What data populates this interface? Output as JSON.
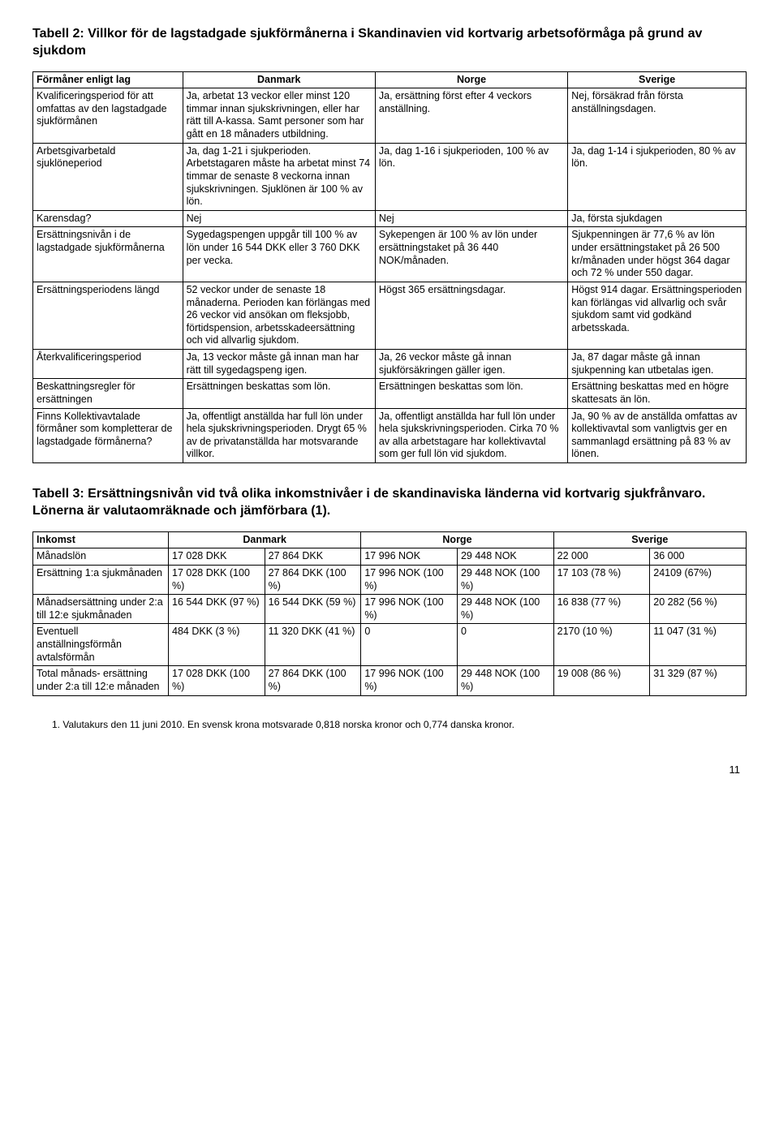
{
  "table2": {
    "title": "Tabell 2: Villkor för de lagstadgade sjukförmånerna i Skandinavien vid kortvarig arbetsoförmåga på grund av sjukdom",
    "headers": [
      "Förmåner enligt lag",
      "Danmark",
      "Norge",
      "Sverige"
    ],
    "rows": [
      {
        "label": "Kvalificeringsperiod för att omfattas av den lagstadgade sjukförmånen",
        "dk": "Ja, arbetat 13 veckor eller minst 120 timmar innan sjukskrivningen, eller har rätt till A-kassa. Samt personer som har gått en 18 månaders utbildning.",
        "no": "Ja, ersättning först efter 4 veckors anställning.",
        "se": "Nej, försäkrad från första anställningsdagen."
      },
      {
        "label": "Arbetsgivarbetald sjuklöneperiod",
        "dk": "Ja, dag 1-21 i sjukperioden. Arbetstagaren måste ha arbetat minst 74 timmar de senaste 8 veckorna innan sjukskrivningen. Sjuklönen är 100 % av lön.",
        "no": "Ja, dag 1-16 i sjukperioden, 100 % av lön.",
        "se": "Ja, dag 1-14 i sjukperioden, 80 % av lön."
      },
      {
        "label": "Karensdag?",
        "dk": "Nej",
        "no": "Nej",
        "se": "Ja, första sjukdagen"
      },
      {
        "label": "Ersättningsnivån i de lagstadgade sjukförmånerna",
        "dk": "Sygedagspengen uppgår till 100 % av lön under 16 544 DKK eller 3 760 DKK per vecka.",
        "no": "Sykepengen är 100 % av lön under ersättningstaket på 36 440 NOK/månaden.",
        "se": "Sjukpenningen är 77,6 % av lön under ersättningstaket på 26 500 kr/månaden under högst 364 dagar och 72 % under 550 dagar."
      },
      {
        "label": "Ersättningsperiodens längd",
        "dk": "52 veckor under de senaste 18 månaderna. Perioden kan förlängas med 26 veckor vid ansökan om fleksjobb, förtidspension, arbetsskadeersättning och vid allvarlig sjukdom.",
        "no": "Högst 365 ersättningsdagar.",
        "se": "Högst 914 dagar. Ersättningsperioden kan förlängas vid allvarlig och svår sjukdom samt vid godkänd arbetsskada."
      },
      {
        "label": "Återkvalificeringsperiod",
        "dk": "Ja, 13 veckor måste gå innan man har rätt till sygedagspeng igen.",
        "no": "Ja, 26 veckor måste gå innan sjukförsäkringen gäller igen.",
        "se": "Ja, 87 dagar måste gå innan sjukpenning kan utbetalas igen."
      },
      {
        "label": "Beskattningsregler för ersättningen",
        "dk": "Ersättningen beskattas som lön.",
        "no": "Ersättningen beskattas som lön.",
        "se": "Ersättning beskattas med en högre skattesats än lön."
      },
      {
        "label": "Finns Kollektivavtalade förmåner som kompletterar de lagstadgade förmånerna?",
        "dk": "Ja, offentligt anställda har full lön under hela sjukskrivningsperioden. Drygt 65 % av de privatanställda har motsvarande villkor.",
        "no": "Ja, offentligt anställda har full lön under hela sjukskrivningsperioden. Cirka 70 % av alla arbetstagare har kollektivavtal som ger full lön vid sjukdom.",
        "se": "Ja, 90 % av de anställda omfattas av kollektivavtal som vanligtvis ger en sammanlagd ersättning på 83 % av lönen."
      }
    ]
  },
  "table3": {
    "title": "Tabell 3: Ersättningsnivån vid två olika inkomstnivåer i de skandinaviska länderna vid kortvarig sjukfrånvaro. Lönerna är valutaomräknade och jämförbara (1).",
    "headers": [
      "Inkomst",
      "Danmark",
      "Norge",
      "Sverige"
    ],
    "rows": [
      {
        "label": "Månadslön",
        "c": [
          "17 028 DKK",
          "27 864 DKK",
          "17 996 NOK",
          "29 448 NOK",
          "22 000",
          "36 000"
        ]
      },
      {
        "label": "Ersättning 1:a sjukmånaden",
        "c": [
          "17 028 DKK (100 %)",
          "27 864 DKK (100 %)",
          "17 996 NOK (100 %)",
          "29 448 NOK (100 %)",
          "17 103 (78 %)",
          "24109 (67%)"
        ]
      },
      {
        "label": "Månadsersättning under 2:a till 12:e sjukmånaden",
        "c": [
          "16 544 DKK (97 %)",
          "16 544 DKK (59 %)",
          "17 996 NOK (100 %)",
          "29 448 NOK (100 %)",
          "16 838 (77 %)",
          "20 282 (56 %)"
        ]
      },
      {
        "label": "Eventuell anställningsförmån avtalsförmån",
        "c": [
          "484 DKK (3 %)",
          "11 320 DKK (41 %)",
          "0",
          "0",
          "2170 (10 %)",
          "11 047 (31 %)"
        ]
      },
      {
        "label": "Total månads- ersättning under 2:a till 12:e månaden",
        "c": [
          "17 028 DKK (100 %)",
          "27 864 DKK (100 %)",
          "17 996 NOK (100 %)",
          "29 448 NOK (100 %)",
          "19 008 (86 %)",
          "31 329 (87 %)"
        ]
      }
    ]
  },
  "footnote": "1. Valutakurs den 11 juni 2010. En svensk krona motsvarade 0,818 norska kronor och 0,774 danska kronor.",
  "pagenum": "11"
}
